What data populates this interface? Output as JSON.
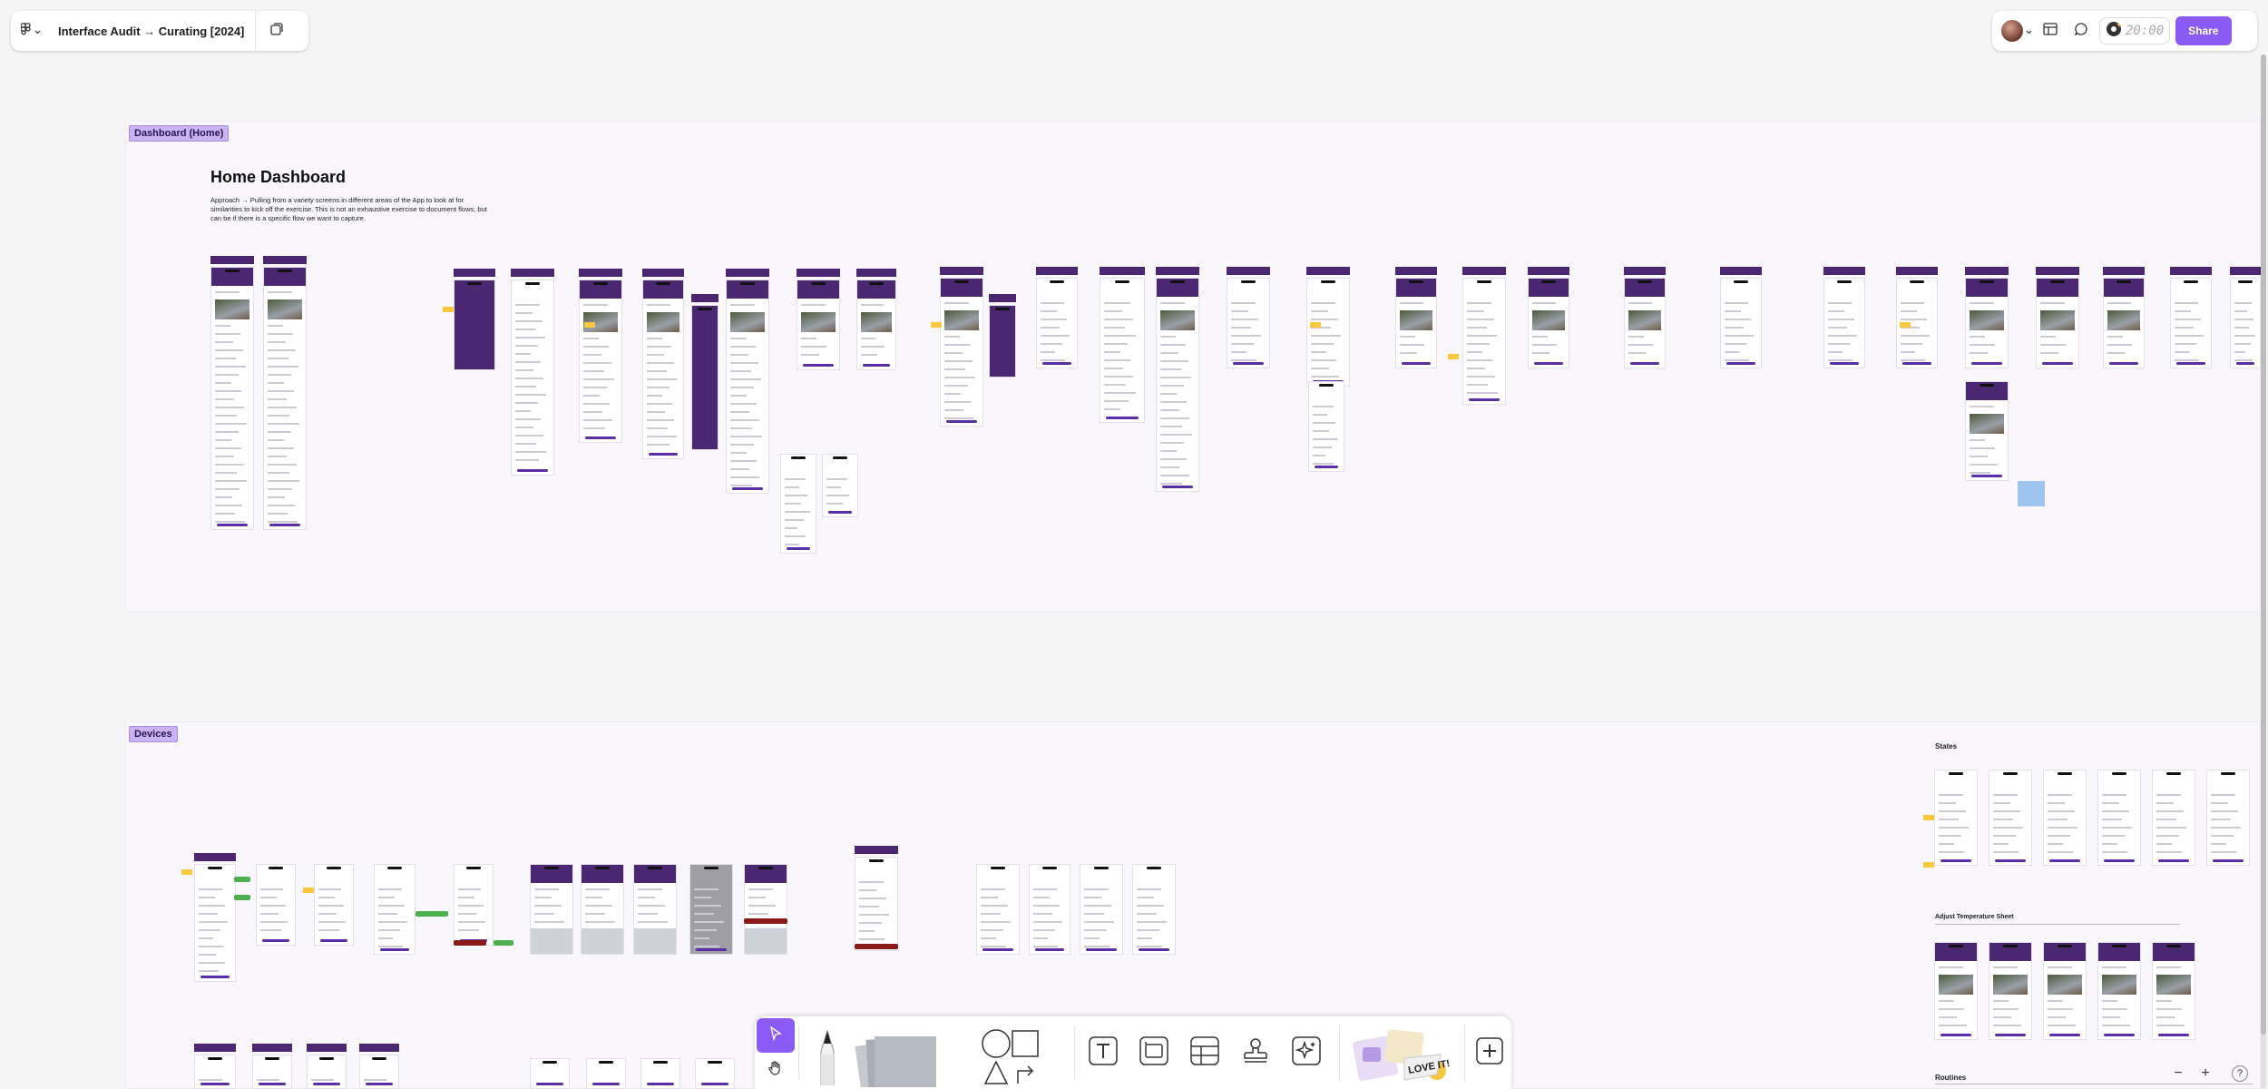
{
  "header": {
    "file_title": "Interface Audit → Curating [2024]",
    "timer": "20:00",
    "share_label": "Share"
  },
  "sections": {
    "dashboard": {
      "tag": "Dashboard (Home)"
    },
    "devices": {
      "tag": "Devices"
    }
  },
  "dashboard_doc": {
    "title": "Home Dashboard",
    "body": "Approach → Pulling from a variety screens in different areas of the App to look at for similarities to kick off the exercise. This is not an exhaustive exercise to document flows, but can be if there is a specific flow we want to capture."
  },
  "devices_panels": {
    "states_title": "States",
    "adjust_title": "Adjust Temperature Sheet",
    "routines_title": "Routines"
  },
  "toolbar": {
    "sticker_text": "LOVE IT!"
  },
  "icons": {
    "figma_menu": "figma-logo-icon",
    "pages": "pages-icon",
    "dev_mode": "dev-mode-icon",
    "comment": "comment-icon",
    "timer": "timer-icon",
    "move": "move-cursor-icon",
    "hand": "hand-icon",
    "pen": "pen-icon",
    "shape": "shape-icon",
    "text": "text-icon",
    "section": "section-icon",
    "table": "table-icon",
    "stamp": "stamp-icon",
    "ai": "sparkle-icon",
    "add": "plus-icon"
  },
  "zoom": {
    "out": "−",
    "in": "+",
    "help": "?"
  },
  "colors": {
    "accent": "#8a5cf5",
    "section_tag": "#c9b3f0",
    "frame_header": "#4b2772",
    "sticky": "#f8c840"
  }
}
